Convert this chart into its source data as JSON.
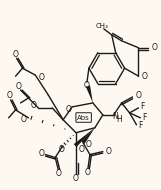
{
  "bg_color": "#fdf8f0",
  "line_color": "#1a1a1a",
  "line_width": 1.0,
  "font_size": 5.5,
  "fig_width": 1.61,
  "fig_height": 1.9,
  "dpi": 100,
  "xlim": [
    0,
    161
  ],
  "ylim": [
    0,
    190
  ]
}
